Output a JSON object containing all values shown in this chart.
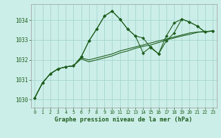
{
  "title": "Graphe pression niveau de la mer (hPa)",
  "background_color": "#cceee8",
  "grid_color": "#aad8d2",
  "line_color": "#1e5e1e",
  "xlim": [
    -0.5,
    23.5
  ],
  "ylim": [
    1029.6,
    1034.8
  ],
  "yticks": [
    1030,
    1031,
    1032,
    1033,
    1034
  ],
  "xticks": [
    0,
    1,
    2,
    3,
    4,
    5,
    6,
    7,
    8,
    9,
    10,
    11,
    12,
    13,
    14,
    15,
    16,
    17,
    18,
    19,
    20,
    21,
    22,
    23
  ],
  "series1": [
    1030.1,
    1030.85,
    1031.3,
    1031.55,
    1031.65,
    1031.7,
    1032.15,
    1032.95,
    1033.55,
    1034.2,
    1034.45,
    1034.05,
    1033.55,
    1033.2,
    1033.1,
    1032.6,
    1032.3,
    1032.95,
    1033.35,
    1034.05,
    1033.9,
    1033.7,
    1033.4,
    1033.45
  ],
  "series2": [
    1030.1,
    1030.85,
    1031.3,
    1031.55,
    1031.65,
    1031.7,
    1032.1,
    1032.0,
    1032.1,
    1032.2,
    1032.3,
    1032.45,
    1032.55,
    1032.65,
    1032.75,
    1032.85,
    1032.95,
    1033.05,
    1033.15,
    1033.25,
    1033.35,
    1033.4,
    1033.42,
    1033.45
  ],
  "series3": [
    1030.1,
    1030.85,
    1031.3,
    1031.55,
    1031.65,
    1031.7,
    1032.05,
    1031.9,
    1032.0,
    1032.1,
    1032.2,
    1032.35,
    1032.45,
    1032.58,
    1032.68,
    1032.75,
    1032.87,
    1033.0,
    1033.1,
    1033.2,
    1033.28,
    1033.38,
    1033.42,
    1033.45
  ],
  "series4": [
    1030.1,
    1030.85,
    1031.3,
    1031.55,
    1031.65,
    1031.7,
    1032.15,
    1032.95,
    1033.55,
    1034.2,
    1034.45,
    1034.05,
    1033.55,
    1033.2,
    1032.35,
    1032.65,
    1032.3,
    1033.2,
    1033.85,
    1034.05,
    1033.9,
    1033.7,
    1033.4,
    1033.45
  ]
}
